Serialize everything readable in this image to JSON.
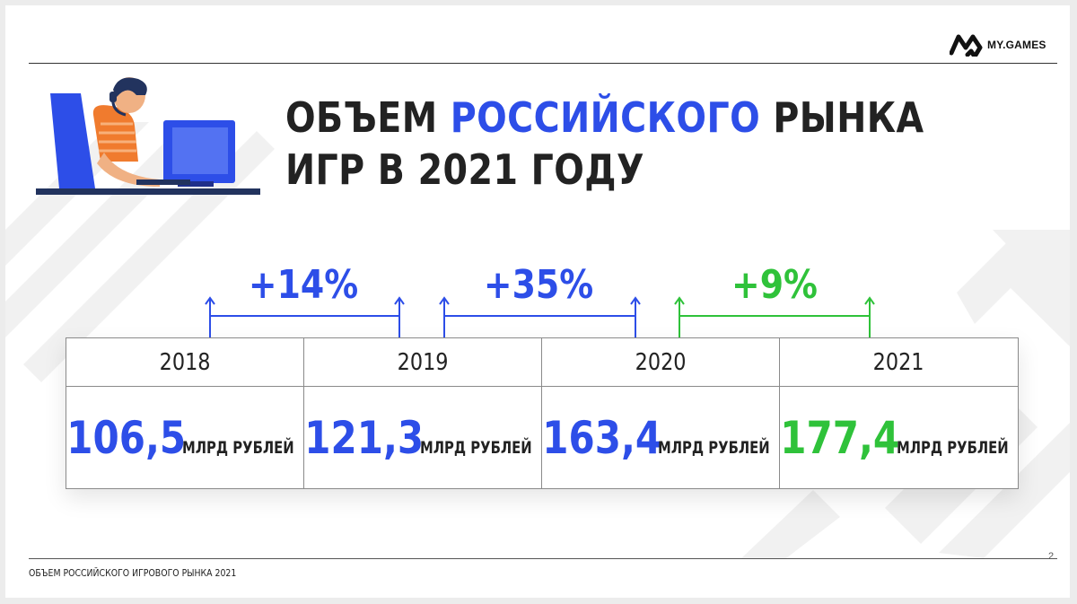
{
  "brand": {
    "name": "MY.GAMES"
  },
  "title": {
    "line1_a": "ОБЪЕМ ",
    "line1_highlight": "РОССИЙСКОГО",
    "line1_b": " РЫНКА",
    "line2": "ИГР В 2021 ГОДУ"
  },
  "colors": {
    "blue": "#2d4ee8",
    "green": "#2fc23a",
    "text": "#222222"
  },
  "growth": [
    {
      "label": "+14%",
      "color": "#2d4ee8"
    },
    {
      "label": "+35%",
      "color": "#2d4ee8"
    },
    {
      "label": "+9%",
      "color": "#2fc23a"
    }
  ],
  "table": {
    "years": [
      "2018",
      "2019",
      "2020",
      "2021"
    ],
    "values": [
      "106,5",
      "121,3",
      "163,4",
      "177,4"
    ],
    "value_colors": [
      "#2d4ee8",
      "#2d4ee8",
      "#2d4ee8",
      "#2fc23a"
    ],
    "unit": "МЛРД РУБЛЕЙ"
  },
  "footer": {
    "text": "ОБЪЕМ РОССИЙСКОГО ИГРОВОГО РЫНКА 2021"
  },
  "page_number": "2",
  "illustration": {
    "icon": "gamer-at-computer-illustration"
  }
}
